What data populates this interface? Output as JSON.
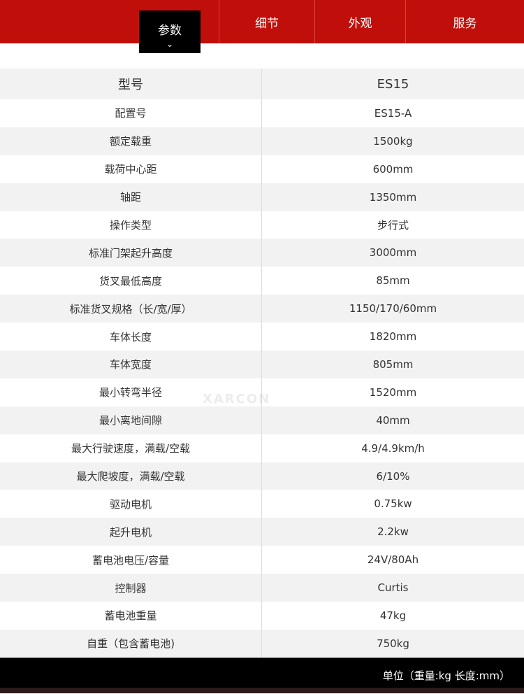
{
  "nav": {
    "active": "参数",
    "tabs": [
      "细节",
      "外观",
      "服务"
    ]
  },
  "rows": [
    [
      "型号",
      "ES15"
    ],
    [
      "配置号",
      "ES15-A"
    ],
    [
      "额定载重",
      "1500kg"
    ],
    [
      "载荷中心距",
      "600mm"
    ],
    [
      "轴距",
      "1350mm"
    ],
    [
      "操作类型",
      "步行式"
    ],
    [
      "标准门架起升高度",
      "3000mm"
    ],
    [
      "货叉最低高度",
      "85mm"
    ],
    [
      "标准货叉规格（长/宽/厚）",
      "1150/170/60mm"
    ],
    [
      "车体长度",
      "1820mm"
    ],
    [
      "车体宽度",
      "805mm"
    ],
    [
      "最小转弯半径",
      "1520mm"
    ],
    [
      "最小离地间隙",
      "40mm"
    ],
    [
      "最大行驶速度，满载/空载",
      "4.9/4.9km/h"
    ],
    [
      "最大爬坡度，满载/空载",
      "6/10%"
    ],
    [
      "驱动电机",
      "0.75kw"
    ],
    [
      "起升电机",
      "2.2kw"
    ],
    [
      "蓄电池电压/容量",
      "24V/80Ah"
    ],
    [
      "控制器",
      "Curtis"
    ],
    [
      "蓄电池重量",
      "47kg"
    ],
    [
      "自重（包含蓄电池)",
      "750kg"
    ]
  ],
  "watermark": "XARCON",
  "footer": "单位（重量:kg  长度:mm）",
  "colors": {
    "nav": "#c00f0a",
    "active": "#000000"
  }
}
